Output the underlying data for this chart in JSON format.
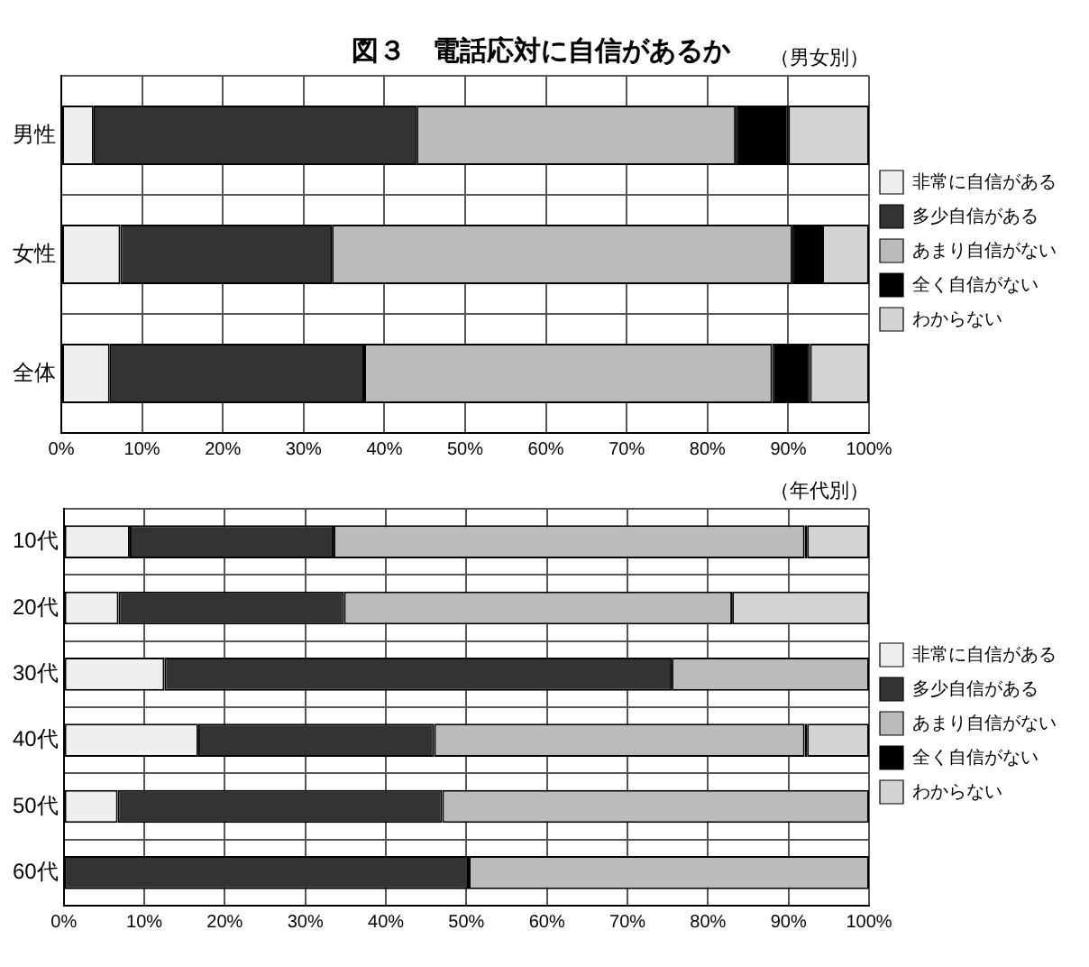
{
  "chart_data": [
    {
      "type": "bar",
      "title": "図３　電話応対に自信があるか",
      "subtitle": "（男女別）",
      "orientation": "horizontal",
      "stacked": true,
      "categories": [
        "男性",
        "女性",
        "全体"
      ],
      "series": [
        {
          "name": "非常に自信がある",
          "color": "#eeeeee",
          "values": [
            4,
            7.3,
            6
          ]
        },
        {
          "name": "多少自信がある",
          "color": "#333333",
          "values": [
            40,
            26.2,
            31.5
          ]
        },
        {
          "name": "あまり自信がない",
          "color": "#bbbbbb",
          "values": [
            39.5,
            57,
            50.5
          ]
        },
        {
          "name": "全く自信がない",
          "color": "#000000",
          "values": [
            6.5,
            3.7,
            4.7
          ]
        },
        {
          "name": "わからない",
          "color": "#d4d4d4",
          "values": [
            10,
            5.8,
            7.3
          ]
        }
      ],
      "xlim": [
        0,
        100
      ],
      "xticks": [
        {
          "value": 0,
          "label": "0%"
        },
        {
          "value": 10,
          "label": "10%"
        },
        {
          "value": 20,
          "label": "20%"
        },
        {
          "value": 30,
          "label": "30%"
        },
        {
          "value": 40,
          "label": "40%"
        },
        {
          "value": 50,
          "label": "50%"
        },
        {
          "value": 60,
          "label": "60%"
        },
        {
          "value": 70,
          "label": "70%"
        },
        {
          "value": 80,
          "label": "80%"
        },
        {
          "value": 90,
          "label": "90%"
        },
        {
          "value": 100,
          "label": "100%"
        }
      ],
      "grid": true,
      "legend": "right"
    },
    {
      "type": "bar",
      "subtitle": "（年代別）",
      "orientation": "horizontal",
      "stacked": true,
      "categories": [
        "10代",
        "20代",
        "30代",
        "40代",
        "50代",
        "60代"
      ],
      "series": [
        {
          "name": "非常に自信がある",
          "color": "#eeeeee",
          "values": [
            8.2,
            6.8,
            12.5,
            16.7,
            6.7,
            0
          ]
        },
        {
          "name": "多少自信がある",
          "color": "#333333",
          "values": [
            25.3,
            28,
            63,
            29.3,
            40.3,
            50.3
          ]
        },
        {
          "name": "あまり自信がない",
          "color": "#bbbbbb",
          "values": [
            58.5,
            48.2,
            24.5,
            46,
            53,
            49.7
          ]
        },
        {
          "name": "全く自信がない",
          "color": "#000000",
          "values": [
            0.3,
            0,
            0,
            0.3,
            0,
            0
          ]
        },
        {
          "name": "わからない",
          "color": "#d4d4d4",
          "values": [
            7.7,
            17,
            0,
            7.7,
            0,
            0
          ]
        }
      ],
      "xlim": [
        0,
        100
      ],
      "xticks": [
        {
          "value": 0,
          "label": "0%"
        },
        {
          "value": 10,
          "label": "10%"
        },
        {
          "value": 20,
          "label": "20%"
        },
        {
          "value": 30,
          "label": "30%"
        },
        {
          "value": 40,
          "label": "40%"
        },
        {
          "value": 50,
          "label": "50%"
        },
        {
          "value": 60,
          "label": "60%"
        },
        {
          "value": 70,
          "label": "70%"
        },
        {
          "value": 80,
          "label": "80%"
        },
        {
          "value": 90,
          "label": "90%"
        },
        {
          "value": 100,
          "label": "100%"
        }
      ],
      "grid": true,
      "legend": "right"
    }
  ]
}
